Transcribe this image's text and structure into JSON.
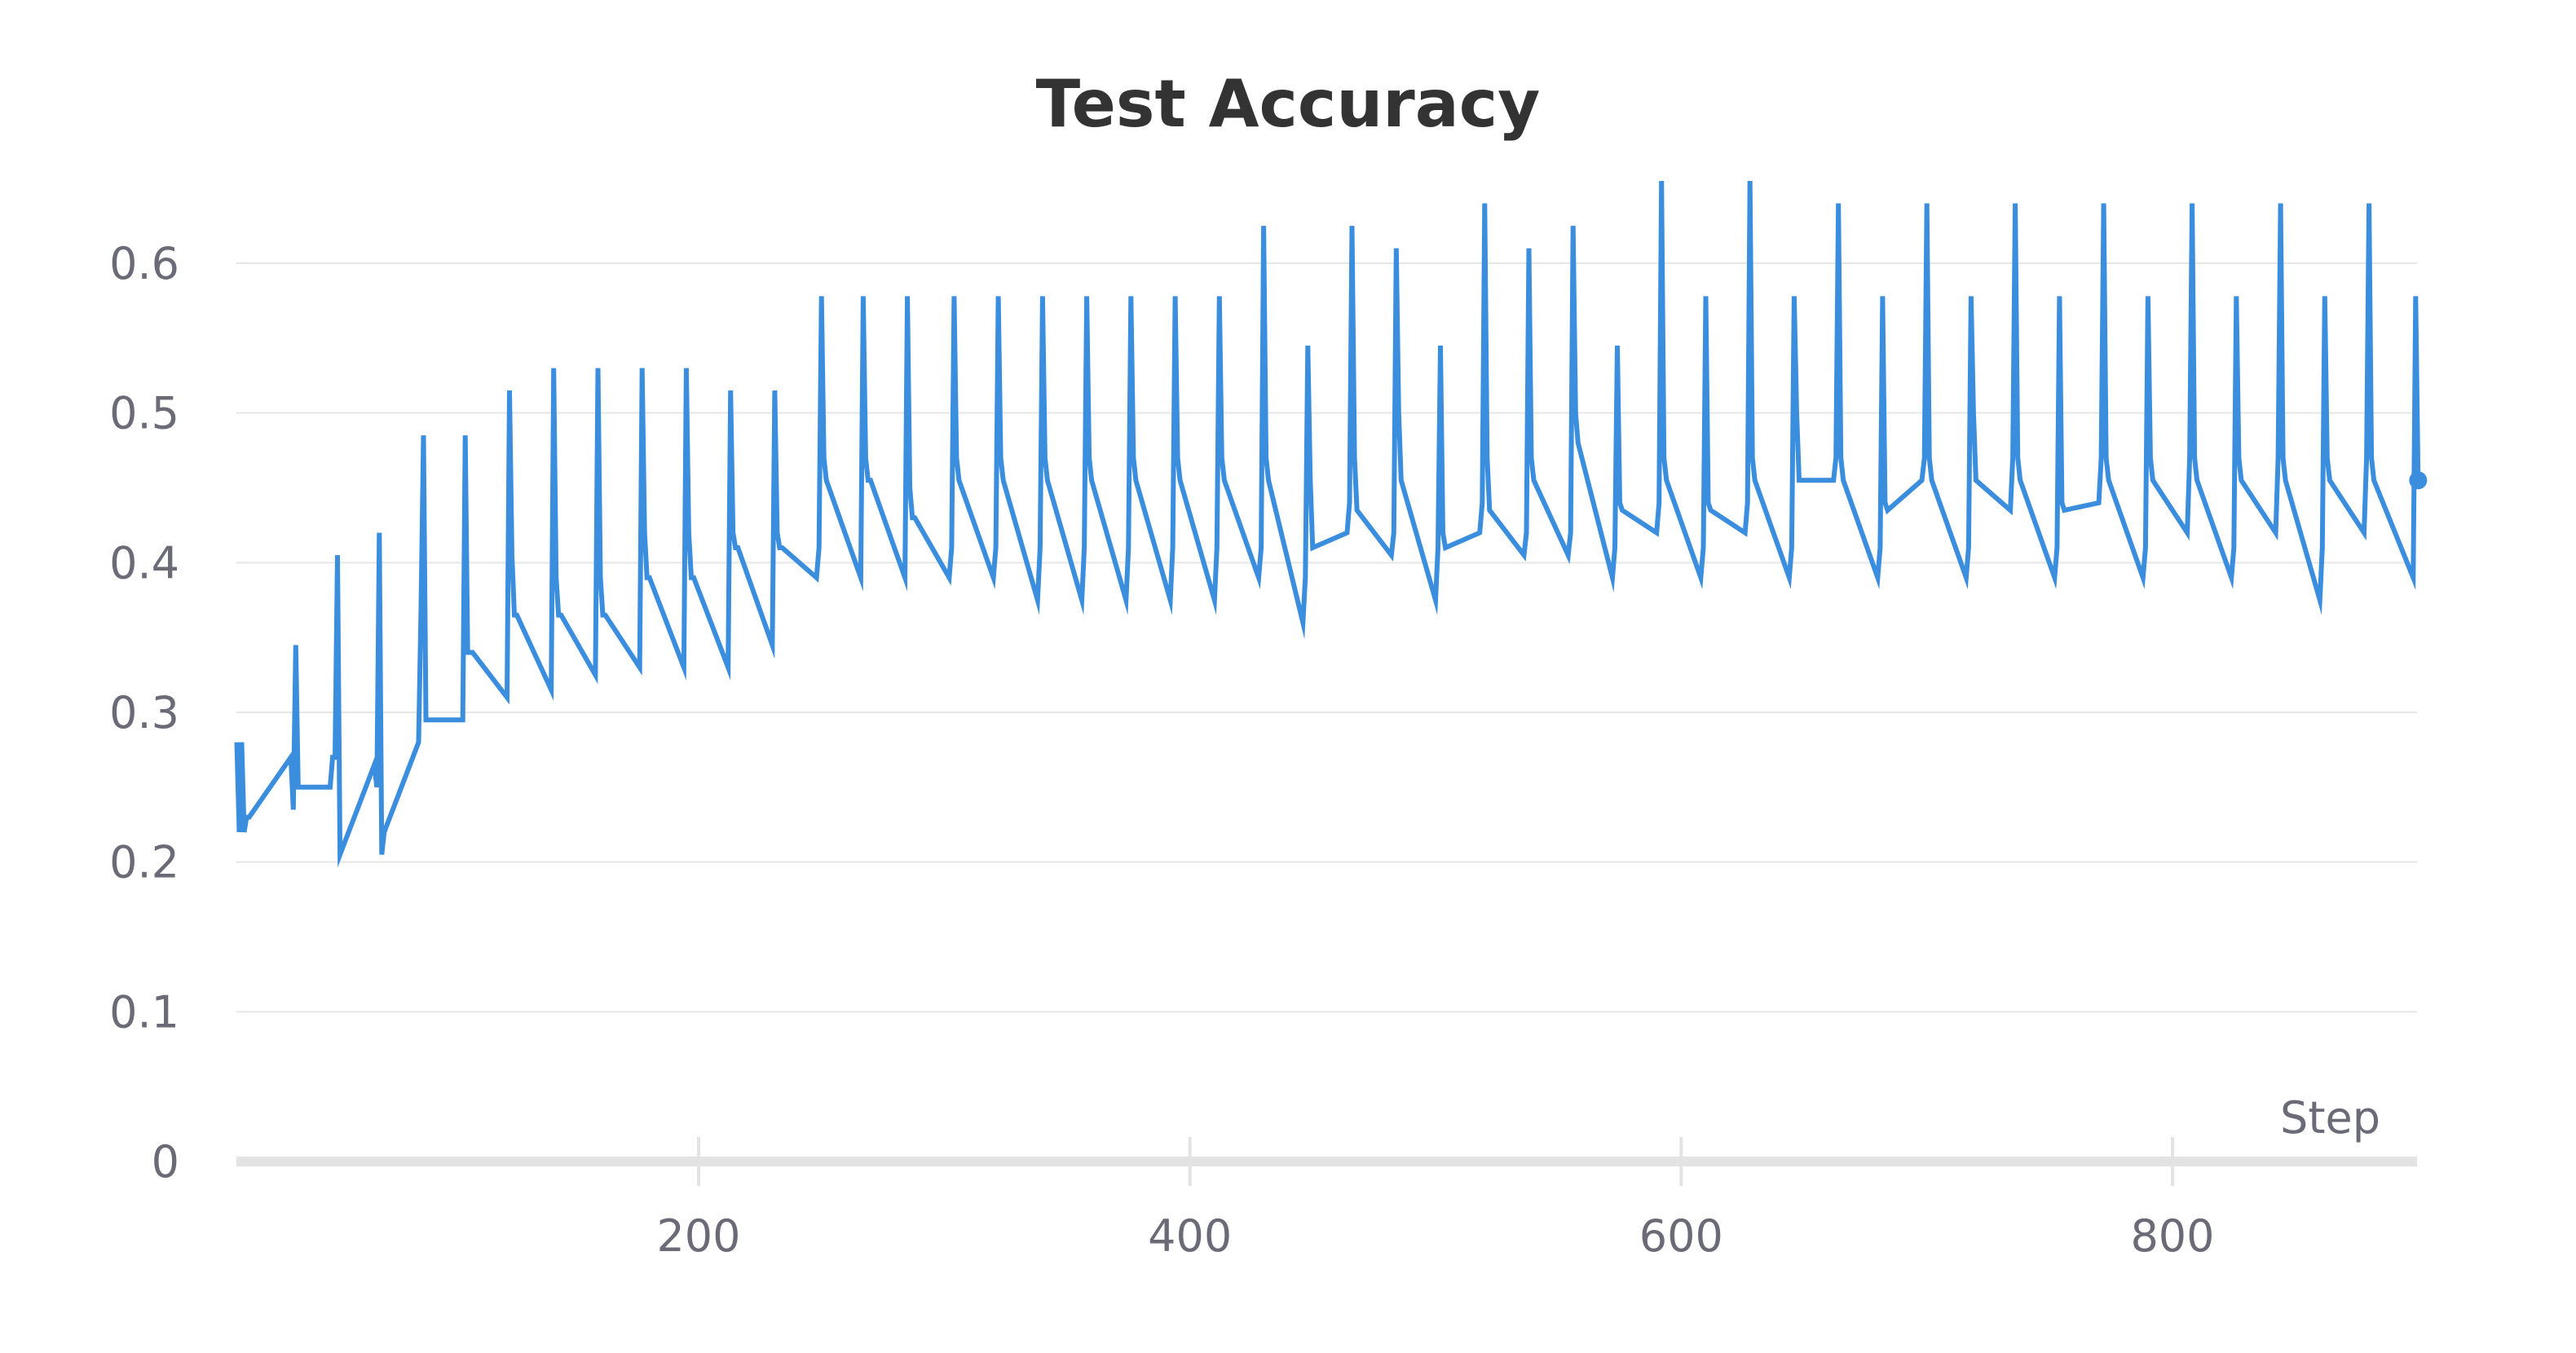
{
  "chart_data": {
    "type": "line",
    "title": "Test Accuracy",
    "xlabel": "Step",
    "ylabel": "",
    "xlim": [
      12,
      900
    ],
    "ylim": [
      0,
      0.65
    ],
    "xticks": [
      200,
      400,
      600,
      800
    ],
    "yticks": [
      0,
      0.1,
      0.2,
      0.3,
      0.4,
      0.5,
      0.6
    ],
    "xtick_labels": [
      "200",
      "400",
      "600",
      "800"
    ],
    "ytick_labels": [
      "0",
      "0.1",
      "0.2",
      "0.3",
      "0.4",
      "0.5",
      "0.6"
    ],
    "grid": true,
    "legend": "none",
    "series": [
      {
        "color": "#3b8ede",
        "x": [
          12,
          13,
          14,
          15,
          16,
          17,
          34,
          35,
          36,
          37,
          50,
          51,
          52,
          53,
          54,
          68,
          69,
          70,
          71,
          72,
          86,
          87,
          88,
          89,
          90,
          104,
          105,
          106,
          107,
          108,
          122,
          123,
          124,
          125,
          126,
          140,
          141,
          142,
          143,
          144,
          158,
          159,
          160,
          161,
          162,
          176,
          177,
          178,
          179,
          180,
          194,
          195,
          196,
          197,
          198,
          212,
          213,
          214,
          215,
          216,
          230,
          231,
          232,
          233,
          234,
          248,
          249,
          250,
          251,
          252,
          266,
          267,
          268,
          269,
          270,
          284,
          285,
          286,
          287,
          288,
          302,
          303,
          304,
          305,
          306,
          320,
          321,
          322,
          323,
          324,
          338,
          339,
          340,
          341,
          342,
          356,
          357,
          358,
          359,
          360,
          374,
          375,
          376,
          377,
          378,
          392,
          393,
          394,
          395,
          396,
          410,
          411,
          412,
          413,
          414,
          428,
          429,
          430,
          431,
          432,
          446,
          447,
          448,
          449,
          450,
          464,
          465,
          466,
          467,
          468,
          482,
          483,
          484,
          485,
          486,
          500,
          501,
          502,
          503,
          504,
          518,
          519,
          520,
          521,
          522,
          536,
          537,
          538,
          539,
          540,
          554,
          555,
          556,
          557,
          558,
          572,
          573,
          574,
          575,
          576,
          590,
          591,
          592,
          593,
          594,
          608,
          609,
          610,
          611,
          612,
          626,
          627,
          628,
          629,
          630,
          644,
          645,
          646,
          647,
          648,
          662,
          663,
          664,
          665,
          666,
          680,
          681,
          682,
          683,
          684,
          698,
          699,
          700,
          701,
          702,
          716,
          717,
          718,
          719,
          720,
          734,
          735,
          736,
          737,
          738,
          752,
          753,
          754,
          755,
          756,
          770,
          771,
          772,
          773,
          774,
          788,
          789,
          790,
          791,
          792,
          806,
          807,
          808,
          809,
          810,
          824,
          825,
          826,
          827,
          828,
          842,
          843,
          844,
          845,
          846,
          860,
          861,
          862,
          863,
          864,
          878,
          879,
          880,
          881,
          882,
          898,
          899,
          900
        ],
        "y": [
          0.28,
          0.22,
          0.28,
          0.22,
          0.23,
          0.23,
          0.27,
          0.235,
          0.345,
          0.25,
          0.25,
          0.27,
          0.27,
          0.405,
          0.205,
          0.265,
          0.25,
          0.42,
          0.205,
          0.22,
          0.28,
          0.37,
          0.485,
          0.295,
          0.295,
          0.295,
          0.485,
          0.34,
          0.34,
          0.34,
          0.31,
          0.515,
          0.405,
          0.365,
          0.365,
          0.315,
          0.53,
          0.39,
          0.365,
          0.365,
          0.325,
          0.53,
          0.39,
          0.365,
          0.365,
          0.33,
          0.53,
          0.42,
          0.39,
          0.39,
          0.33,
          0.53,
          0.42,
          0.39,
          0.39,
          0.33,
          0.515,
          0.42,
          0.41,
          0.41,
          0.345,
          0.515,
          0.42,
          0.41,
          0.41,
          0.39,
          0.41,
          0.578,
          0.47,
          0.455,
          0.39,
          0.578,
          0.47,
          0.455,
          0.455,
          0.39,
          0.578,
          0.45,
          0.43,
          0.43,
          0.39,
          0.41,
          0.578,
          0.47,
          0.455,
          0.39,
          0.41,
          0.578,
          0.47,
          0.455,
          0.375,
          0.41,
          0.578,
          0.47,
          0.455,
          0.375,
          0.41,
          0.578,
          0.47,
          0.455,
          0.375,
          0.41,
          0.578,
          0.47,
          0.455,
          0.375,
          0.41,
          0.578,
          0.47,
          0.455,
          0.375,
          0.41,
          0.578,
          0.47,
          0.455,
          0.39,
          0.41,
          0.625,
          0.47,
          0.455,
          0.36,
          0.39,
          0.545,
          0.455,
          0.41,
          0.42,
          0.44,
          0.625,
          0.47,
          0.435,
          0.405,
          0.42,
          0.61,
          0.5,
          0.455,
          0.375,
          0.41,
          0.545,
          0.42,
          0.41,
          0.42,
          0.44,
          0.64,
          0.47,
          0.435,
          0.405,
          0.42,
          0.61,
          0.47,
          0.455,
          0.405,
          0.42,
          0.625,
          0.5,
          0.48,
          0.39,
          0.41,
          0.545,
          0.44,
          0.435,
          0.42,
          0.44,
          0.655,
          0.47,
          0.455,
          0.39,
          0.41,
          0.578,
          0.44,
          0.435,
          0.42,
          0.44,
          0.655,
          0.47,
          0.455,
          0.39,
          0.41,
          0.578,
          0.5,
          0.455,
          0.455,
          0.47,
          0.64,
          0.47,
          0.455,
          0.39,
          0.41,
          0.578,
          0.44,
          0.435,
          0.455,
          0.47,
          0.64,
          0.47,
          0.455,
          0.39,
          0.41,
          0.578,
          0.5,
          0.455,
          0.435,
          0.47,
          0.64,
          0.47,
          0.455,
          0.39,
          0.41,
          0.578,
          0.44,
          0.435,
          0.44,
          0.47,
          0.64,
          0.47,
          0.455,
          0.39,
          0.41,
          0.578,
          0.47,
          0.455,
          0.42,
          0.47,
          0.64,
          0.47,
          0.455,
          0.39,
          0.41,
          0.578,
          0.47,
          0.455,
          0.42,
          0.47,
          0.64,
          0.47,
          0.455,
          0.375,
          0.41,
          0.578,
          0.47,
          0.455,
          0.42,
          0.47,
          0.64,
          0.47,
          0.455,
          0.39,
          0.578,
          0.455
        ]
      }
    ]
  }
}
